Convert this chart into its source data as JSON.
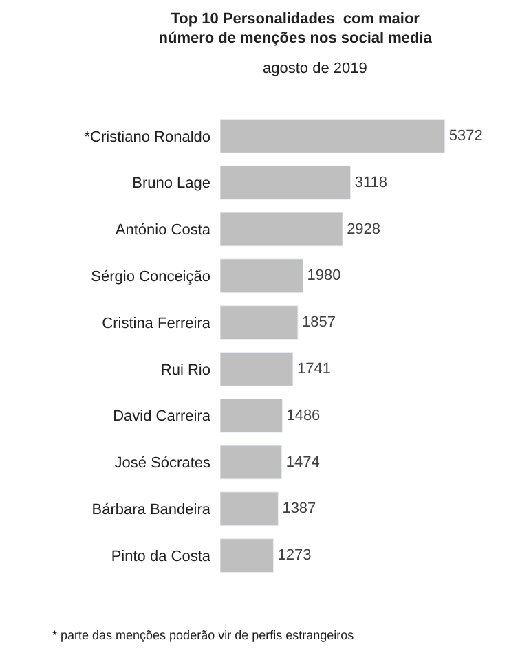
{
  "chart_data": {
    "type": "bar",
    "orientation": "horizontal",
    "title": "Top 10 Personalidades  com maior\nnúmero de menções nos social media",
    "subtitle": "agosto de 2019",
    "categories": [
      "*Cristiano Ronaldo",
      "Bruno Lage",
      "António Costa",
      "Sérgio Conceição",
      "Cristina Ferreira",
      "Rui Rio",
      "David Carreira",
      "José Sócrates",
      "Bárbara Bandeira",
      "Pinto da Costa"
    ],
    "values": [
      5372,
      3118,
      2928,
      1980,
      1857,
      1741,
      1486,
      1474,
      1387,
      1273
    ],
    "color": "#bfbfbf",
    "data_labels": true,
    "legend": false,
    "tick_labels": "y",
    "annotations": [
      "* parte das menções poderão vir de perfis estrangeiros"
    ]
  }
}
